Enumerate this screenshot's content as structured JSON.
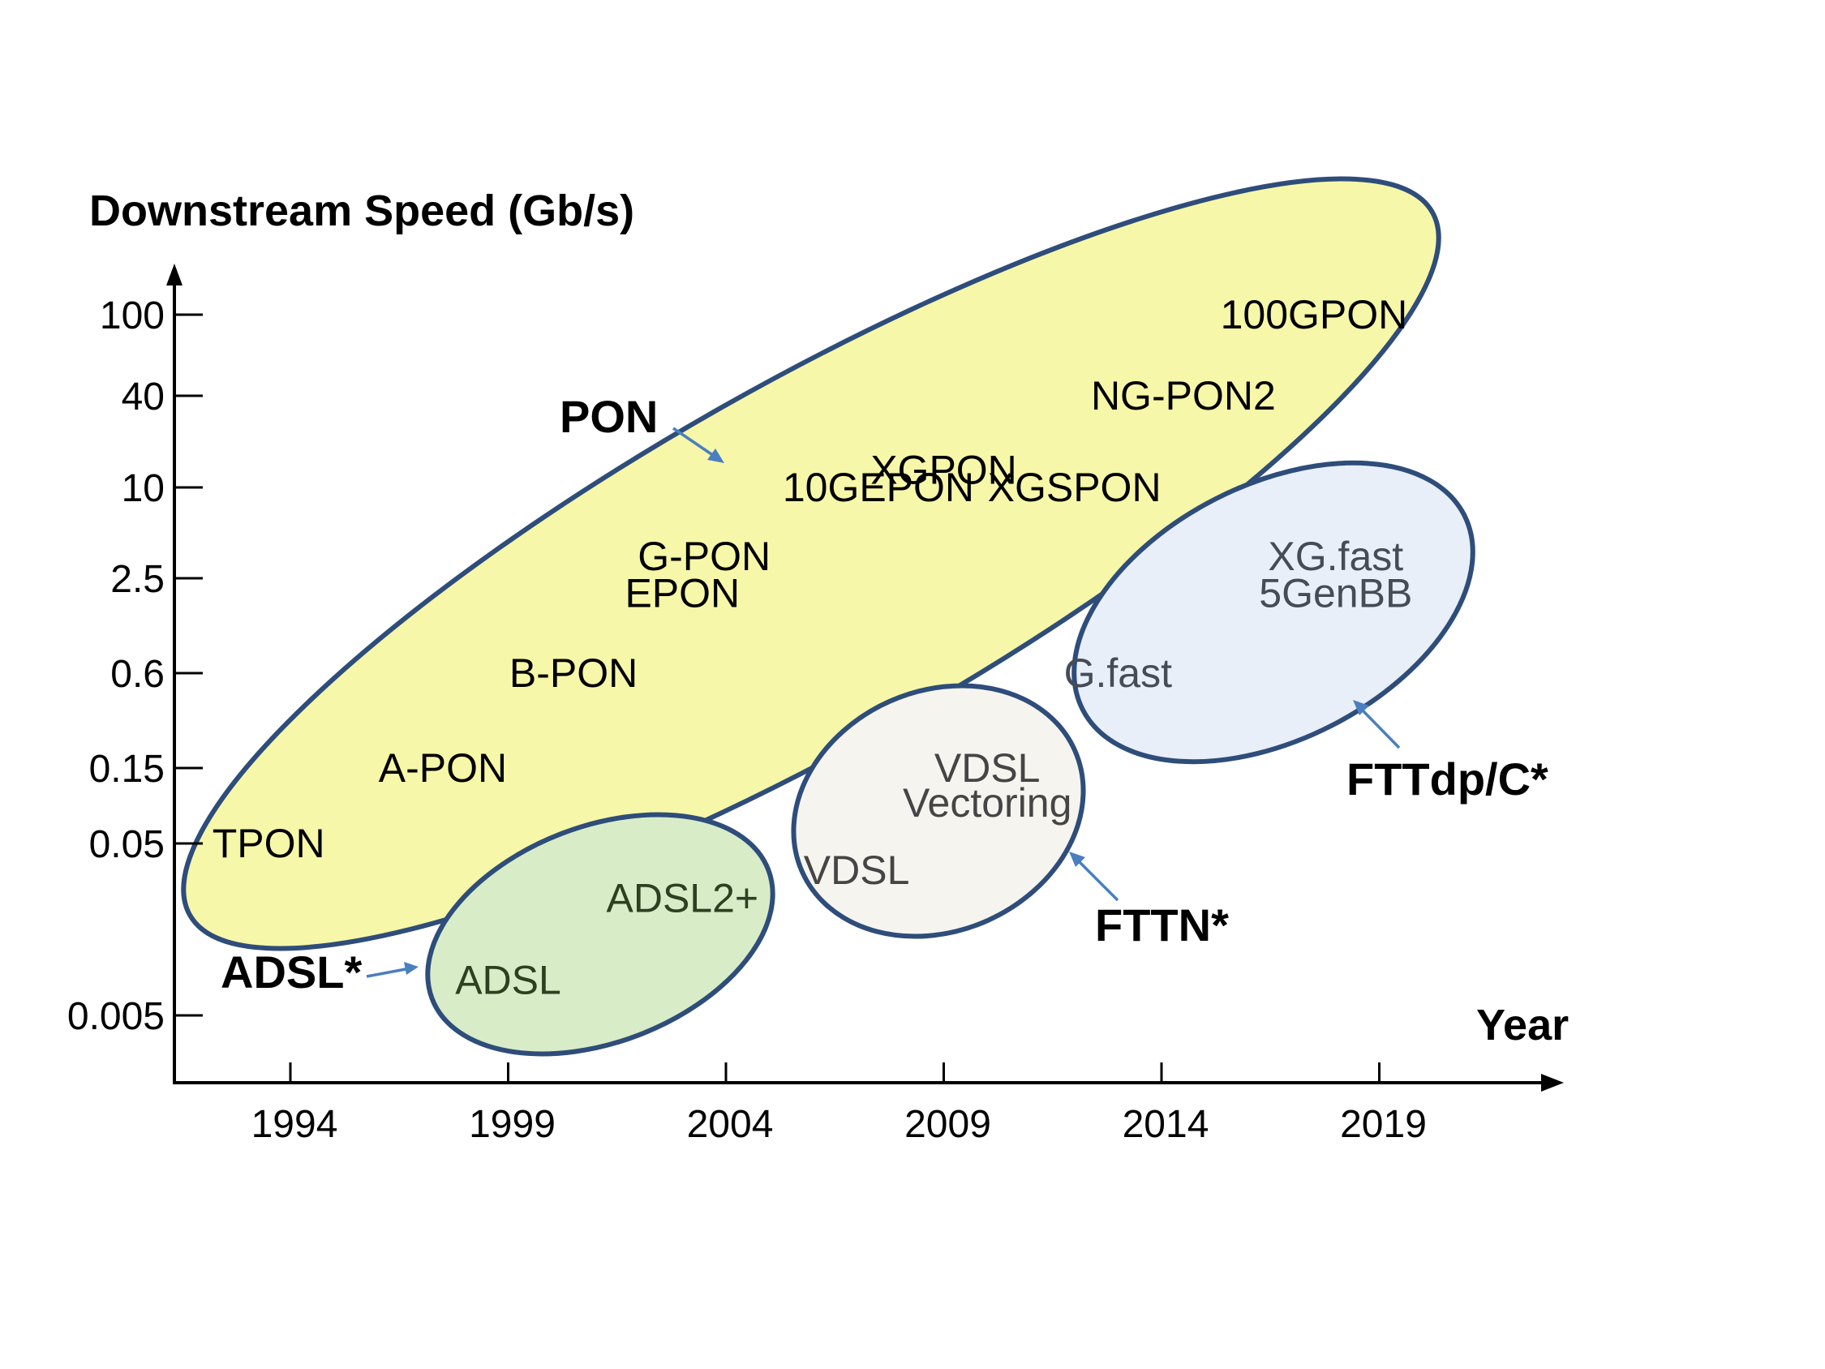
{
  "chart_data": {
    "type": "scatter",
    "title": "",
    "ylabel": "Downstream Speed (Gb/s)",
    "xlabel": "Year",
    "x_ticks": [
      1994,
      1999,
      2004,
      2009,
      2014,
      2019
    ],
    "y_ticks": [
      "100",
      "40",
      "10",
      "2.5",
      "0.6",
      "0.15",
      "0.05",
      "0.005"
    ],
    "y_scale": "log",
    "grid": false,
    "groups": [
      {
        "name": "PON",
        "fill": "#f7f7a9",
        "text_color": "#000000",
        "points": [
          {
            "label": "TPON",
            "year": 1993.5,
            "speed": 0.05
          },
          {
            "label": "A-PON",
            "year": 1997.5,
            "speed": 0.15
          },
          {
            "label": "B-PON",
            "year": 2000.5,
            "speed": 0.6
          },
          {
            "label": "EPON",
            "year": 2003,
            "speed": 2.0
          },
          {
            "label": "G-PON",
            "year": 2003.5,
            "speed": 3.5
          },
          {
            "label": "10GEPON",
            "year": 2007.5,
            "speed": 10
          },
          {
            "label": "XGPON",
            "year": 2009,
            "speed": 13
          },
          {
            "label": "XGSPON",
            "year": 2012,
            "speed": 10
          },
          {
            "label": "NG-PON2",
            "year": 2014.5,
            "speed": 40
          },
          {
            "label": "100GPON",
            "year": 2017.5,
            "speed": 100
          }
        ]
      },
      {
        "name": "ADSL*",
        "fill": "#d8ecc8",
        "text_color": "#2d4020",
        "points": [
          {
            "label": "ADSL",
            "year": 1999,
            "speed": 0.008
          },
          {
            "label": "ADSL2+",
            "year": 2003,
            "speed": 0.024
          }
        ]
      },
      {
        "name": "FTTN*",
        "fill": "#f6f4ef",
        "text_color": "#454545",
        "points": [
          {
            "label": "VDSL",
            "year": 2007,
            "speed": 0.035
          },
          {
            "label": "VDSL",
            "year": 2010,
            "speed": 0.15
          },
          {
            "label": "Vectoring",
            "year": 2010,
            "speed": 0.09
          }
        ]
      },
      {
        "name": "FTTdp/C*",
        "fill": "#e9eff8",
        "text_color": "#454b57",
        "points": [
          {
            "label": "G.fast",
            "year": 2013,
            "speed": 0.6
          },
          {
            "label": "5GenBB",
            "year": 2018,
            "speed": 2.0
          },
          {
            "label": "XG.fast",
            "year": 2018,
            "speed": 3.5
          }
        ]
      }
    ]
  }
}
